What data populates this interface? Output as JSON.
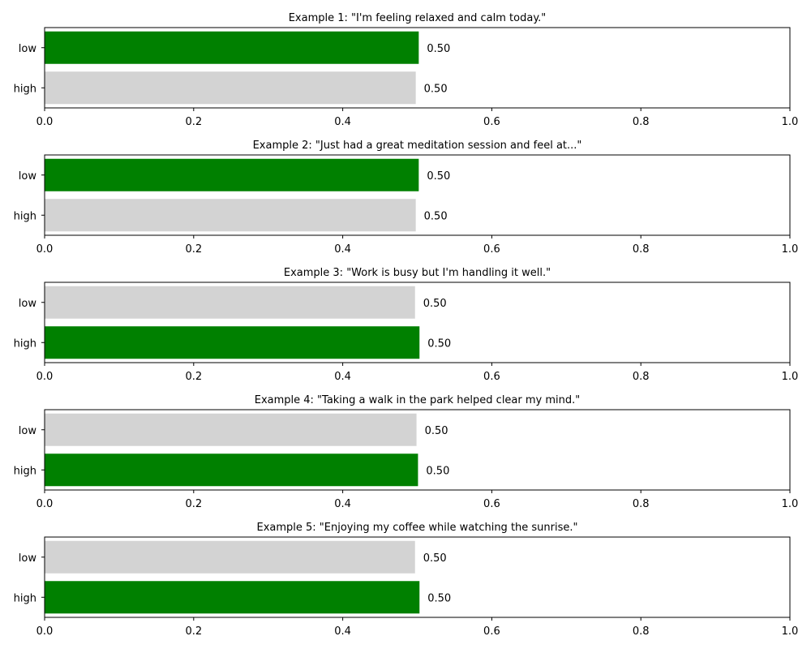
{
  "chart_data": [
    {
      "type": "bar",
      "orientation": "horizontal",
      "title": "Example 1: \"I'm feeling relaxed and calm today.\"",
      "categories": [
        "low",
        "high"
      ],
      "values": [
        0.502,
        0.498
      ],
      "value_labels": [
        "0.50",
        "0.50"
      ],
      "bar_colors": [
        "#008000",
        "#d3d3d3"
      ],
      "xlim": [
        0,
        1
      ],
      "xticks": [
        "0.0",
        "0.2",
        "0.4",
        "0.6",
        "0.8",
        "1.0"
      ],
      "xlabel": "",
      "ylabel": "",
      "grid": false,
      "legend": "none"
    },
    {
      "type": "bar",
      "orientation": "horizontal",
      "title": "Example 2: \"Just had a great meditation session and feel at...\"",
      "categories": [
        "low",
        "high"
      ],
      "values": [
        0.502,
        0.498
      ],
      "value_labels": [
        "0.50",
        "0.50"
      ],
      "bar_colors": [
        "#008000",
        "#d3d3d3"
      ],
      "xlim": [
        0,
        1
      ],
      "xticks": [
        "0.0",
        "0.2",
        "0.4",
        "0.6",
        "0.8",
        "1.0"
      ],
      "xlabel": "",
      "ylabel": "",
      "grid": false,
      "legend": "none"
    },
    {
      "type": "bar",
      "orientation": "horizontal",
      "title": "Example 3: \"Work is busy but I'm handling it well.\"",
      "categories": [
        "low",
        "high"
      ],
      "values": [
        0.497,
        0.503
      ],
      "value_labels": [
        "0.50",
        "0.50"
      ],
      "bar_colors": [
        "#d3d3d3",
        "#008000"
      ],
      "xlim": [
        0,
        1
      ],
      "xticks": [
        "0.0",
        "0.2",
        "0.4",
        "0.6",
        "0.8",
        "1.0"
      ],
      "xlabel": "",
      "ylabel": "",
      "grid": false,
      "legend": "none"
    },
    {
      "type": "bar",
      "orientation": "horizontal",
      "title": "Example 4: \"Taking a walk in the park helped clear my mind.\"",
      "categories": [
        "low",
        "high"
      ],
      "values": [
        0.499,
        0.501
      ],
      "value_labels": [
        "0.50",
        "0.50"
      ],
      "bar_colors": [
        "#d3d3d3",
        "#008000"
      ],
      "xlim": [
        0,
        1
      ],
      "xticks": [
        "0.0",
        "0.2",
        "0.4",
        "0.6",
        "0.8",
        "1.0"
      ],
      "xlabel": "",
      "ylabel": "",
      "grid": false,
      "legend": "none"
    },
    {
      "type": "bar",
      "orientation": "horizontal",
      "title": "Example 5: \"Enjoying my coffee while watching the sunrise.\"",
      "categories": [
        "low",
        "high"
      ],
      "values": [
        0.497,
        0.503
      ],
      "value_labels": [
        "0.50",
        "0.50"
      ],
      "bar_colors": [
        "#d3d3d3",
        "#008000"
      ],
      "xlim": [
        0,
        1
      ],
      "xticks": [
        "0.0",
        "0.2",
        "0.4",
        "0.6",
        "0.8",
        "1.0"
      ],
      "xlabel": "",
      "ylabel": "",
      "grid": false,
      "legend": "none"
    }
  ]
}
